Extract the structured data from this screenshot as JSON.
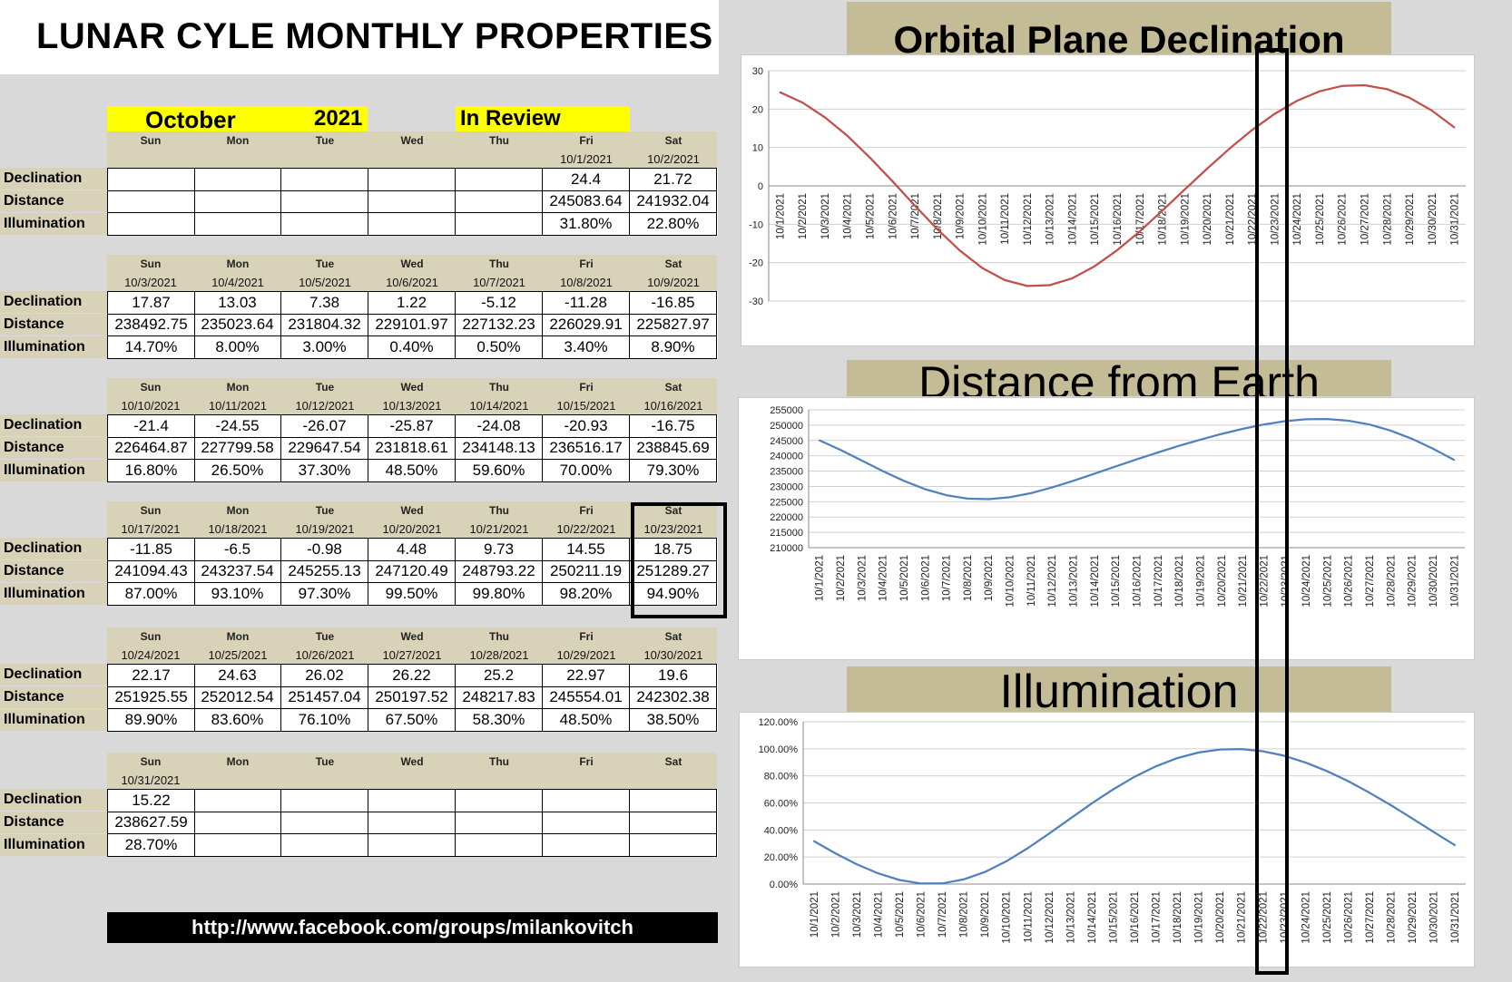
{
  "title": "LUNAR CYLE MONTHLY PROPERTIES",
  "header": {
    "month": "October",
    "year": "2021",
    "review": "In Review"
  },
  "row_labels": [
    "Declination",
    "Distance",
    "Illumination"
  ],
  "weeks": [
    {
      "days": [
        "Sun",
        "Mon",
        "Tue",
        "Wed",
        "Thu",
        "Fri",
        "Sat"
      ],
      "dates": [
        "",
        "",
        "",
        "",
        "",
        "10/1/2021",
        "10/2/2021"
      ],
      "declination": [
        "",
        "",
        "",
        "",
        "",
        "24.4",
        "21.72"
      ],
      "distance": [
        "",
        "",
        "",
        "",
        "",
        "245083.64",
        "241932.04"
      ],
      "illumination": [
        "",
        "",
        "",
        "",
        "",
        "31.80%",
        "22.80%"
      ]
    },
    {
      "days": [
        "Sun",
        "Mon",
        "Tue",
        "Wed",
        "Thu",
        "Fri",
        "Sat"
      ],
      "dates": [
        "10/3/2021",
        "10/4/2021",
        "10/5/2021",
        "10/6/2021",
        "10/7/2021",
        "10/8/2021",
        "10/9/2021"
      ],
      "declination": [
        "17.87",
        "13.03",
        "7.38",
        "1.22",
        "-5.12",
        "-11.28",
        "-16.85"
      ],
      "distance": [
        "238492.75",
        "235023.64",
        "231804.32",
        "229101.97",
        "227132.23",
        "226029.91",
        "225827.97"
      ],
      "illumination": [
        "14.70%",
        "8.00%",
        "3.00%",
        "0.40%",
        "0.50%",
        "3.40%",
        "8.90%"
      ]
    },
    {
      "days": [
        "Sun",
        "Mon",
        "Tue",
        "Wed",
        "Thu",
        "Fri",
        "Sat"
      ],
      "dates": [
        "10/10/2021",
        "10/11/2021",
        "10/12/2021",
        "10/13/2021",
        "10/14/2021",
        "10/15/2021",
        "10/16/2021"
      ],
      "declination": [
        "-21.4",
        "-24.55",
        "-26.07",
        "-25.87",
        "-24.08",
        "-20.93",
        "-16.75"
      ],
      "distance": [
        "226464.87",
        "227799.58",
        "229647.54",
        "231818.61",
        "234148.13",
        "236516.17",
        "238845.69"
      ],
      "illumination": [
        "16.80%",
        "26.50%",
        "37.30%",
        "48.50%",
        "59.60%",
        "70.00%",
        "79.30%"
      ]
    },
    {
      "days": [
        "Sun",
        "Mon",
        "Tue",
        "Wed",
        "Thu",
        "Fri",
        "Sat"
      ],
      "dates": [
        "10/17/2021",
        "10/18/2021",
        "10/19/2021",
        "10/20/2021",
        "10/21/2021",
        "10/22/2021",
        "10/23/2021"
      ],
      "declination": [
        "-11.85",
        "-6.5",
        "-0.98",
        "4.48",
        "9.73",
        "14.55",
        "18.75"
      ],
      "distance": [
        "241094.43",
        "243237.54",
        "245255.13",
        "247120.49",
        "248793.22",
        "250211.19",
        "251289.27"
      ],
      "illumination": [
        "87.00%",
        "93.10%",
        "97.30%",
        "99.50%",
        "99.80%",
        "98.20%",
        "94.90%"
      ]
    },
    {
      "days": [
        "Sun",
        "Mon",
        "Tue",
        "Wed",
        "Thu",
        "Fri",
        "Sat"
      ],
      "dates": [
        "10/24/2021",
        "10/25/2021",
        "10/26/2021",
        "10/27/2021",
        "10/28/2021",
        "10/29/2021",
        "10/30/2021"
      ],
      "declination": [
        "22.17",
        "24.63",
        "26.02",
        "26.22",
        "25.2",
        "22.97",
        "19.6"
      ],
      "distance": [
        "251925.55",
        "252012.54",
        "251457.04",
        "250197.52",
        "248217.83",
        "245554.01",
        "242302.38"
      ],
      "illumination": [
        "89.90%",
        "83.60%",
        "76.10%",
        "67.50%",
        "58.30%",
        "48.50%",
        "38.50%"
      ]
    },
    {
      "days": [
        "Sun",
        "Mon",
        "Tue",
        "Wed",
        "Thu",
        "Fri",
        "Sat"
      ],
      "dates": [
        "10/31/2021",
        "",
        "",
        "",
        "",
        "",
        ""
      ],
      "declination": [
        "15.22",
        "",
        "",
        "",
        "",
        "",
        ""
      ],
      "distance": [
        "238627.59",
        "",
        "",
        "",
        "",
        "",
        ""
      ],
      "illumination": [
        "28.70%",
        "",
        "",
        "",
        "",
        "",
        ""
      ]
    }
  ],
  "footer_link": "http://www.facebook.com/groups/milankovitch",
  "colors": {
    "declination_line": "#c0504d",
    "distance_line": "#4f81bd",
    "illumination_line": "#4f81bd",
    "title_band": "#c4bc96",
    "header_band": "#d8d3b8",
    "highlight": "#ffff00"
  },
  "chart_data": [
    {
      "type": "line",
      "title": "Orbital Plane Declination",
      "x": [
        "10/1/2021",
        "10/2/2021",
        "10/3/2021",
        "10/4/2021",
        "10/5/2021",
        "10/6/2021",
        "10/7/2021",
        "10/8/2021",
        "10/9/2021",
        "10/10/2021",
        "10/11/2021",
        "10/12/2021",
        "10/13/2021",
        "10/14/2021",
        "10/15/2021",
        "10/16/2021",
        "10/17/2021",
        "10/18/2021",
        "10/19/2021",
        "10/20/2021",
        "10/21/2021",
        "10/22/2021",
        "10/23/2021",
        "10/24/2021",
        "10/25/2021",
        "10/26/2021",
        "10/27/2021",
        "10/28/2021",
        "10/29/2021",
        "10/30/2021",
        "10/31/2021"
      ],
      "values": [
        24.4,
        21.72,
        17.87,
        13.03,
        7.38,
        1.22,
        -5.12,
        -11.28,
        -16.85,
        -21.4,
        -24.55,
        -26.07,
        -25.87,
        -24.08,
        -20.93,
        -16.75,
        -11.85,
        -6.5,
        -0.98,
        4.48,
        9.73,
        14.55,
        18.75,
        22.17,
        24.63,
        26.02,
        26.22,
        25.2,
        22.97,
        19.6,
        15.22
      ],
      "yticks": [
        "30",
        "20",
        "10",
        "0",
        "-10",
        "-20",
        "-30"
      ],
      "ylim": [
        -30,
        30
      ],
      "grid": true
    },
    {
      "type": "line",
      "title": "Distance from Earth",
      "x": [
        "10/1/2021",
        "10/2/2021",
        "10/3/2021",
        "10/4/2021",
        "10/5/2021",
        "10/6/2021",
        "10/7/2021",
        "10/8/2021",
        "10/9/2021",
        "10/10/2021",
        "10/11/2021",
        "10/12/2021",
        "10/13/2021",
        "10/14/2021",
        "10/15/2021",
        "10/16/2021",
        "10/17/2021",
        "10/18/2021",
        "10/19/2021",
        "10/20/2021",
        "10/21/2021",
        "10/22/2021",
        "10/23/2021",
        "10/24/2021",
        "10/25/2021",
        "10/26/2021",
        "10/27/2021",
        "10/28/2021",
        "10/29/2021",
        "10/30/2021",
        "10/31/2021"
      ],
      "values": [
        245083.64,
        241932.04,
        238492.75,
        235023.64,
        231804.32,
        229101.97,
        227132.23,
        226029.91,
        225827.97,
        226464.87,
        227799.58,
        229647.54,
        231818.61,
        234148.13,
        236516.17,
        238845.69,
        241094.43,
        243237.54,
        245255.13,
        247120.49,
        248793.22,
        250211.19,
        251289.27,
        251925.55,
        252012.54,
        251457.04,
        250197.52,
        248217.83,
        245554.01,
        242302.38,
        238627.59
      ],
      "yticks": [
        "255000",
        "250000",
        "245000",
        "240000",
        "235000",
        "230000",
        "225000",
        "220000",
        "215000",
        "210000"
      ],
      "ylim": [
        210000,
        255000
      ],
      "grid": true
    },
    {
      "type": "line",
      "title": "Illumination",
      "x": [
        "10/1/2021",
        "10/2/2021",
        "10/3/2021",
        "10/4/2021",
        "10/5/2021",
        "10/6/2021",
        "10/7/2021",
        "10/8/2021",
        "10/9/2021",
        "10/10/2021",
        "10/11/2021",
        "10/12/2021",
        "10/13/2021",
        "10/14/2021",
        "10/15/2021",
        "10/16/2021",
        "10/17/2021",
        "10/18/2021",
        "10/19/2021",
        "10/20/2021",
        "10/21/2021",
        "10/22/2021",
        "10/23/2021",
        "10/24/2021",
        "10/25/2021",
        "10/26/2021",
        "10/27/2021",
        "10/28/2021",
        "10/29/2021",
        "10/30/2021",
        "10/31/2021"
      ],
      "values": [
        31.8,
        22.8,
        14.7,
        8.0,
        3.0,
        0.4,
        0.5,
        3.4,
        8.9,
        16.8,
        26.5,
        37.3,
        48.5,
        59.6,
        70.0,
        79.3,
        87.0,
        93.1,
        97.3,
        99.5,
        99.8,
        98.2,
        94.9,
        89.9,
        83.6,
        76.1,
        67.5,
        58.3,
        48.5,
        38.5,
        28.7
      ],
      "yticks": [
        "120.00%",
        "100.00%",
        "80.00%",
        "60.00%",
        "40.00%",
        "20.00%",
        "0.00%"
      ],
      "ylim": [
        0,
        120
      ],
      "grid": true
    }
  ]
}
